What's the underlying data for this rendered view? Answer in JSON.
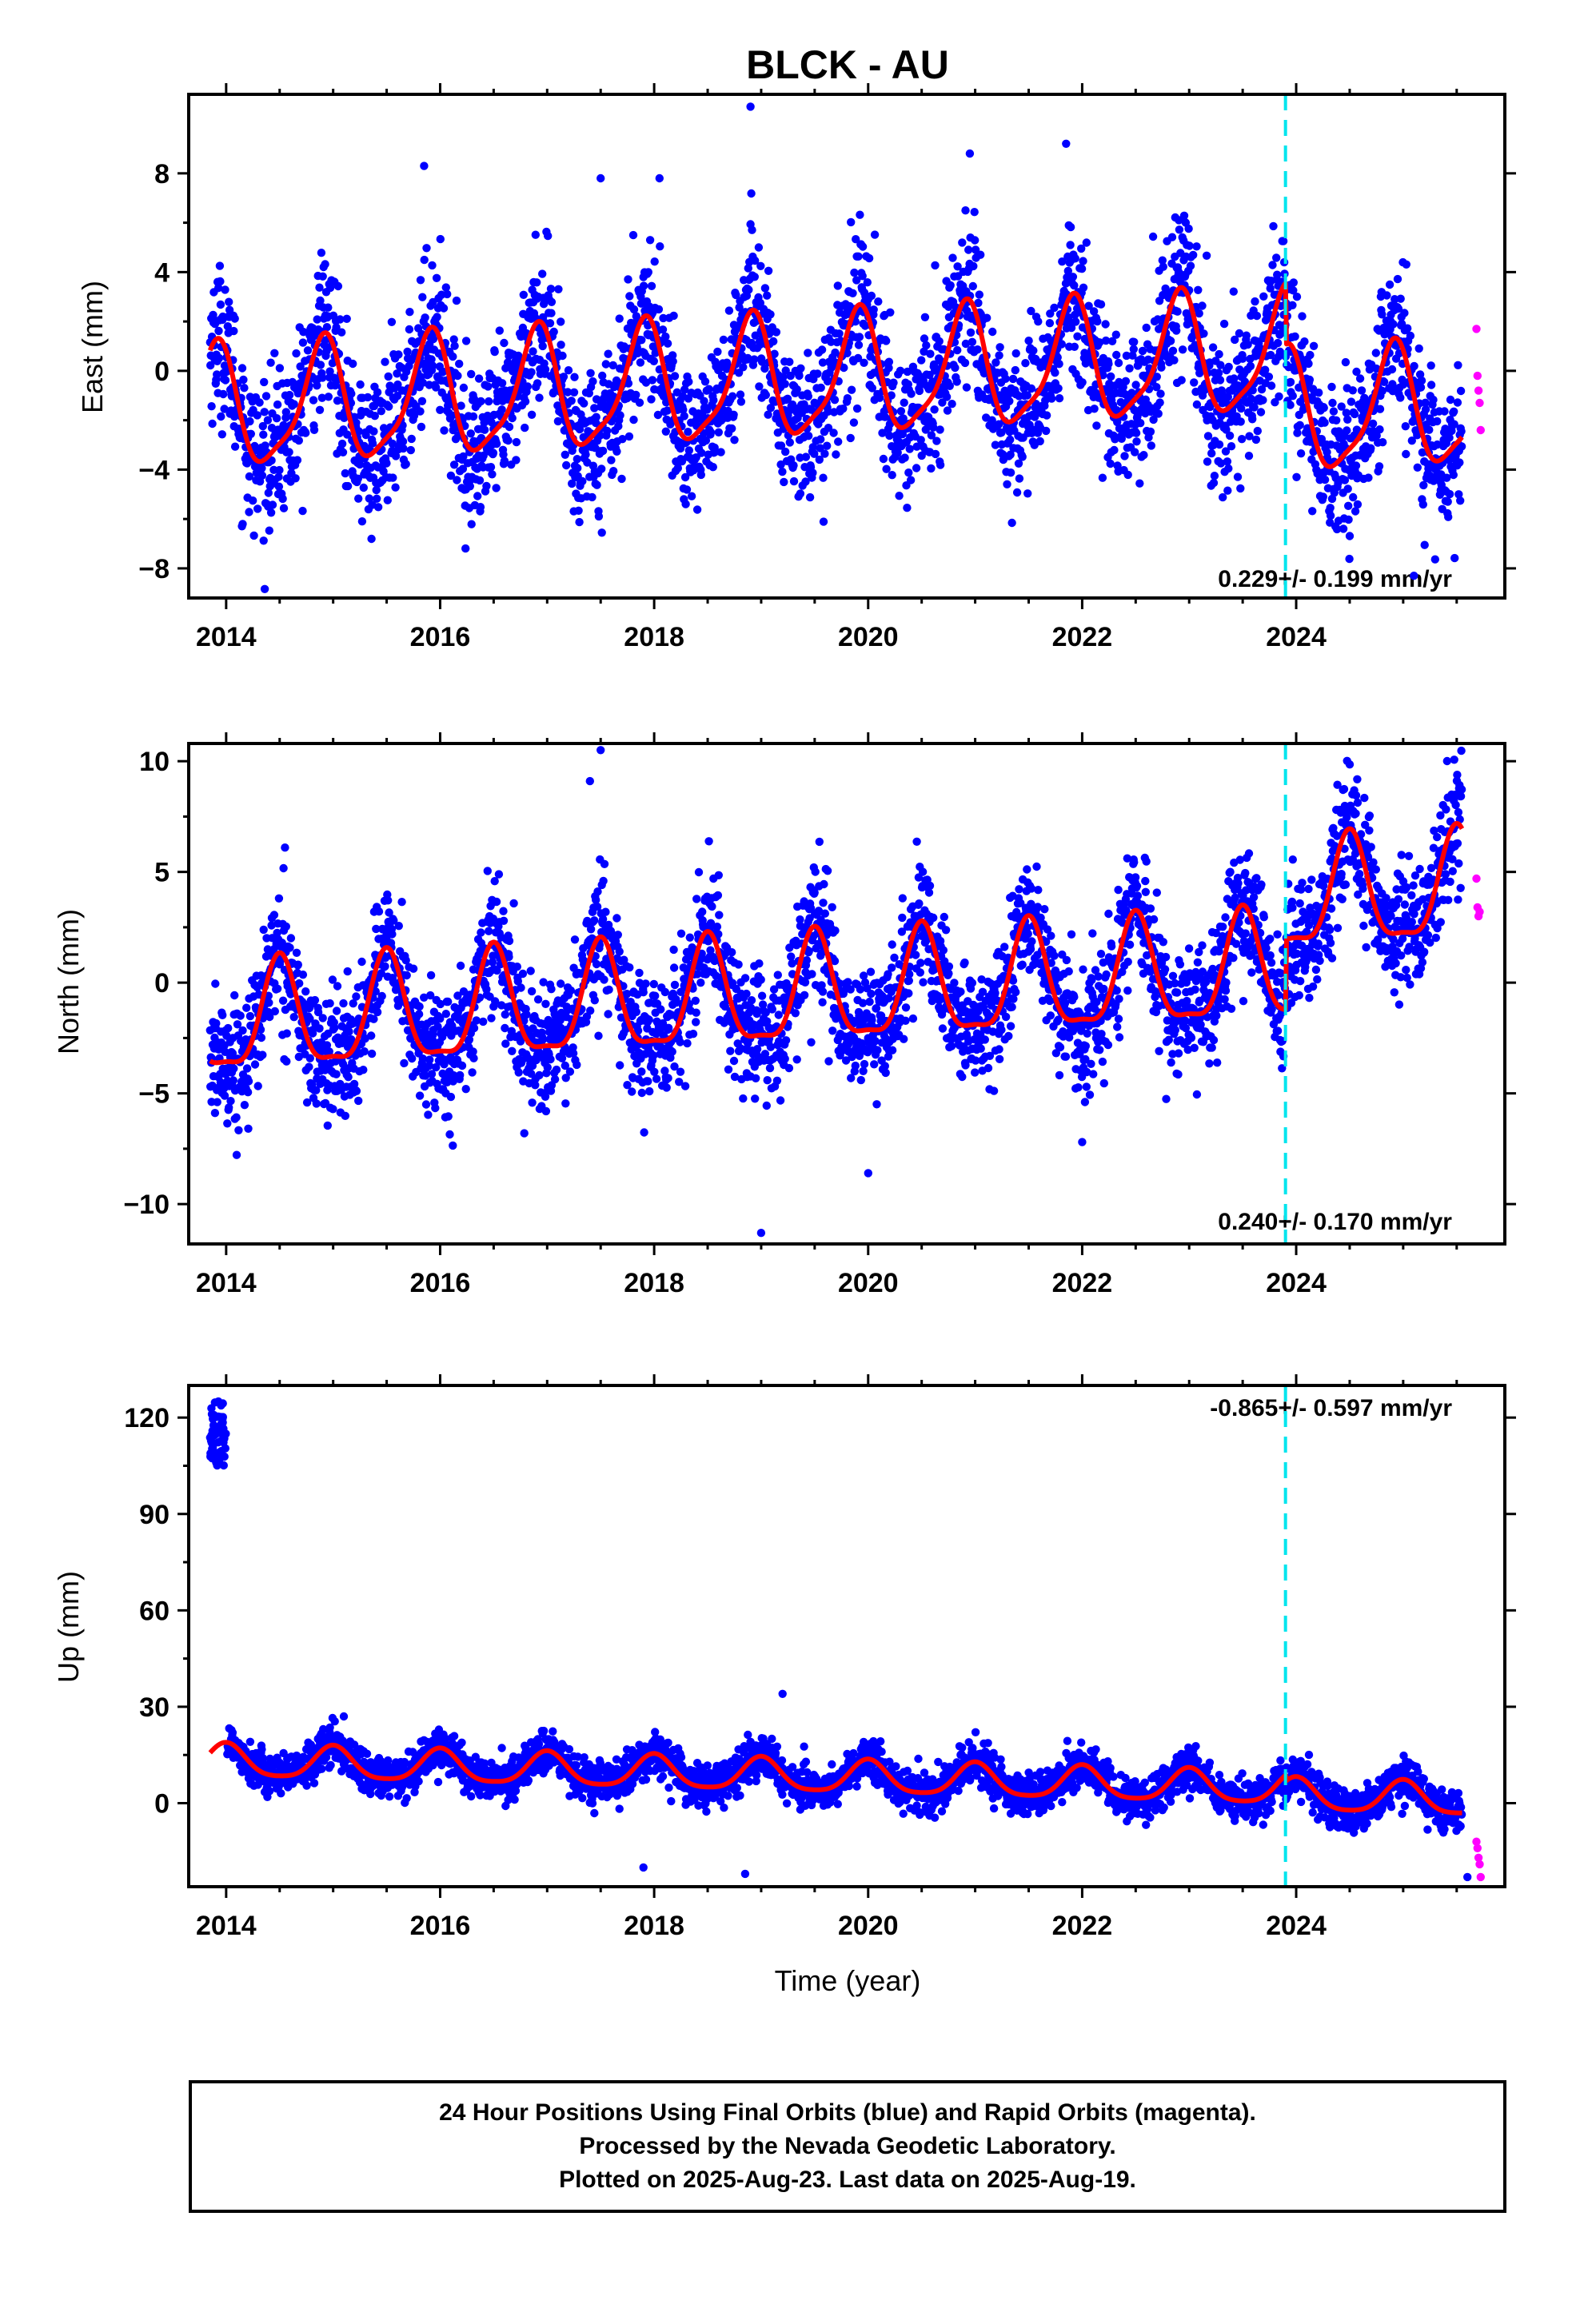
{
  "title": "BLCK - AU",
  "colors": {
    "final_orbits": "#0000ff",
    "rapid_orbits": "#ff00ff",
    "model_fit": "#ff0000",
    "event_line": "#00e5ee"
  },
  "chart_data": [
    {
      "type": "scatter",
      "panel": "east",
      "ylabel": "East (mm)",
      "xlim": [
        2013.65,
        2025.95
      ],
      "ylim": [
        -9.2,
        11.2
      ],
      "yticks": [
        -8,
        -4,
        0,
        4,
        8
      ],
      "xticks": [
        2014,
        2016,
        2018,
        2020,
        2022,
        2024
      ],
      "rate_label": "0.229+/- 0.199 mm/yr",
      "rate_position": "bottom-right",
      "grid": false,
      "event_line_year": 2023.9,
      "fit": {
        "offset": -0.3,
        "trend_mm_per_yr": 0.229,
        "annual_amp": 2.4,
        "annual_peak": 0.9,
        "semiannual_amp": 0.6,
        "semiannual_peak": 0.45,
        "step_year": 2023.9,
        "step_mm": -2.5
      },
      "scatter_sd": 1.5,
      "outliers": [
        [
          2018.9,
          10.7
        ],
        [
          2015.85,
          8.3
        ],
        [
          2020.95,
          8.8
        ],
        [
          2021.85,
          9.2
        ],
        [
          2017.5,
          7.8
        ],
        [
          2018.05,
          7.8
        ],
        [
          2025.1,
          -8.3
        ]
      ],
      "rapid_points": [
        [
          2025.55,
          1.7
        ],
        [
          2025.56,
          -0.2
        ],
        [
          2025.57,
          -0.8
        ],
        [
          2025.58,
          -1.3
        ],
        [
          2025.59,
          -2.4
        ]
      ]
    },
    {
      "type": "scatter",
      "panel": "north",
      "ylabel": "North (mm)",
      "xlim": [
        2013.65,
        2025.95
      ],
      "ylim": [
        -11.8,
        10.8
      ],
      "yticks": [
        -10,
        -5,
        0,
        5,
        10
      ],
      "xticks": [
        2014,
        2016,
        2018,
        2020,
        2022,
        2024
      ],
      "rate_label": "0.240+/- 0.170 mm/yr",
      "rate_position": "bottom-right",
      "grid": false,
      "event_line_year": 2023.9,
      "fit": {
        "offset": -0.5,
        "trend_mm_per_yr": 0.24,
        "annual_amp": 2.4,
        "annual_peak": 0.5,
        "semiannual_amp": 0.7,
        "semiannual_peak": 0.5,
        "step_year": 2023.9,
        "step_mm": 3.2
      },
      "scatter_sd": 1.4,
      "outliers": [
        [
          2017.5,
          10.5
        ],
        [
          2017.4,
          9.1
        ],
        [
          2019.0,
          -11.3
        ],
        [
          2020.0,
          -8.6
        ],
        [
          2022.0,
          -7.2
        ],
        [
          2014.55,
          6.1
        ]
      ],
      "rapid_points": [
        [
          2025.55,
          4.7
        ],
        [
          2025.56,
          3.4
        ],
        [
          2025.57,
          3.0
        ],
        [
          2025.58,
          3.2
        ]
      ]
    },
    {
      "type": "scatter",
      "panel": "up",
      "ylabel": "Up (mm)",
      "xlabel": "Time (year)",
      "xlim": [
        2013.65,
        2025.95
      ],
      "ylim": [
        -26,
        130
      ],
      "yticks": [
        0,
        30,
        60,
        90,
        120
      ],
      "xticks": [
        2014,
        2016,
        2018,
        2020,
        2022,
        2024
      ],
      "rate_label": "-0.865+/- 0.597 mm/yr",
      "rate_position": "top-right",
      "grid": false,
      "event_line_year": 2023.9,
      "fit": {
        "offset": 8.0,
        "trend_mm_per_yr": -0.865,
        "annual_amp": 5.0,
        "annual_peak": 0.0,
        "semiannual_amp": 1.0,
        "semiannual_peak": 0.0,
        "step_year": 2023.9,
        "step_mm": -2.0
      },
      "scatter_sd": 3.2,
      "early_cluster": {
        "x_range": [
          2013.85,
          2014.0
        ],
        "y_center": 114,
        "y_sd": 5
      },
      "outliers": [
        [
          2019.2,
          34
        ],
        [
          2015.1,
          27
        ],
        [
          2017.9,
          -20
        ],
        [
          2018.85,
          -22
        ],
        [
          2025.6,
          -23
        ]
      ],
      "rapid_points": [
        [
          2025.55,
          -12
        ],
        [
          2025.56,
          -14
        ],
        [
          2025.57,
          -17
        ],
        [
          2025.58,
          -19
        ],
        [
          2025.59,
          -23
        ]
      ]
    }
  ],
  "footer": {
    "line1": "24 Hour Positions Using Final Orbits (blue) and Rapid Orbits (magenta).",
    "line2": "Processed by the Nevada Geodetic Laboratory.",
    "line3": "Plotted on 2025-Aug-23. Last data on 2025-Aug-19."
  }
}
